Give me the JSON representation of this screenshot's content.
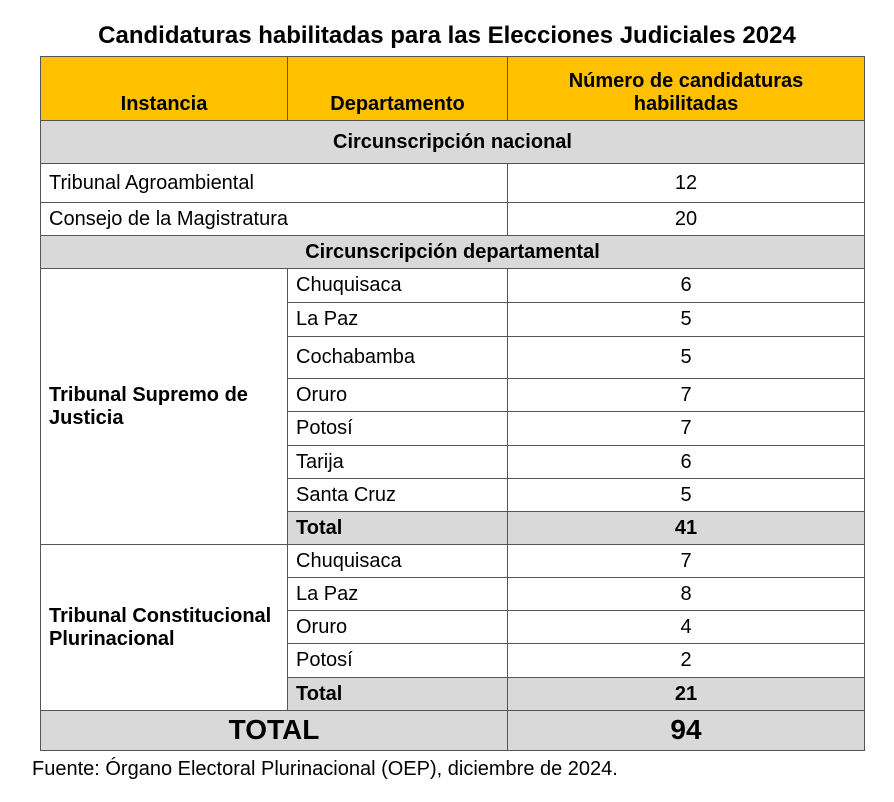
{
  "title": "Candidaturas habilitadas para las Elecciones Judiciales 2024",
  "header": [
    "Instancia",
    "Departamento",
    "Número de candidaturas habilitadas"
  ],
  "nacional": {
    "heading": "Circunscripción nacional",
    "rows": [
      [
        "Tribunal Agroambiental",
        12
      ],
      [
        "Consejo de la Magistratura",
        20
      ]
    ]
  },
  "departamental": {
    "heading": "Circunscripción departamental",
    "groups": [
      {
        "instancia": "Tribunal Supremo de Justicia",
        "rows": [
          [
            "Chuquisaca",
            6
          ],
          [
            "La Paz",
            5
          ],
          [
            "Cochabamba",
            5
          ],
          [
            "Oruro",
            7
          ],
          [
            "Potosí",
            7
          ],
          [
            "Tarija",
            6
          ],
          [
            "Santa Cruz",
            5
          ]
        ],
        "total_label": "Total",
        "total": 41
      },
      {
        "instancia": "Tribunal Constitucional Plurinacional",
        "rows": [
          [
            "Chuquisaca",
            7
          ],
          [
            "La Paz",
            8
          ],
          [
            "Oruro",
            4
          ],
          [
            "Potosí",
            2
          ]
        ],
        "total_label": "Total",
        "total": 21
      }
    ]
  },
  "grand_total": {
    "label": "TOTAL",
    "value": 94
  },
  "source": "Fuente: Órgano Electoral Plurinacional (OEP), diciembre de 2024."
}
